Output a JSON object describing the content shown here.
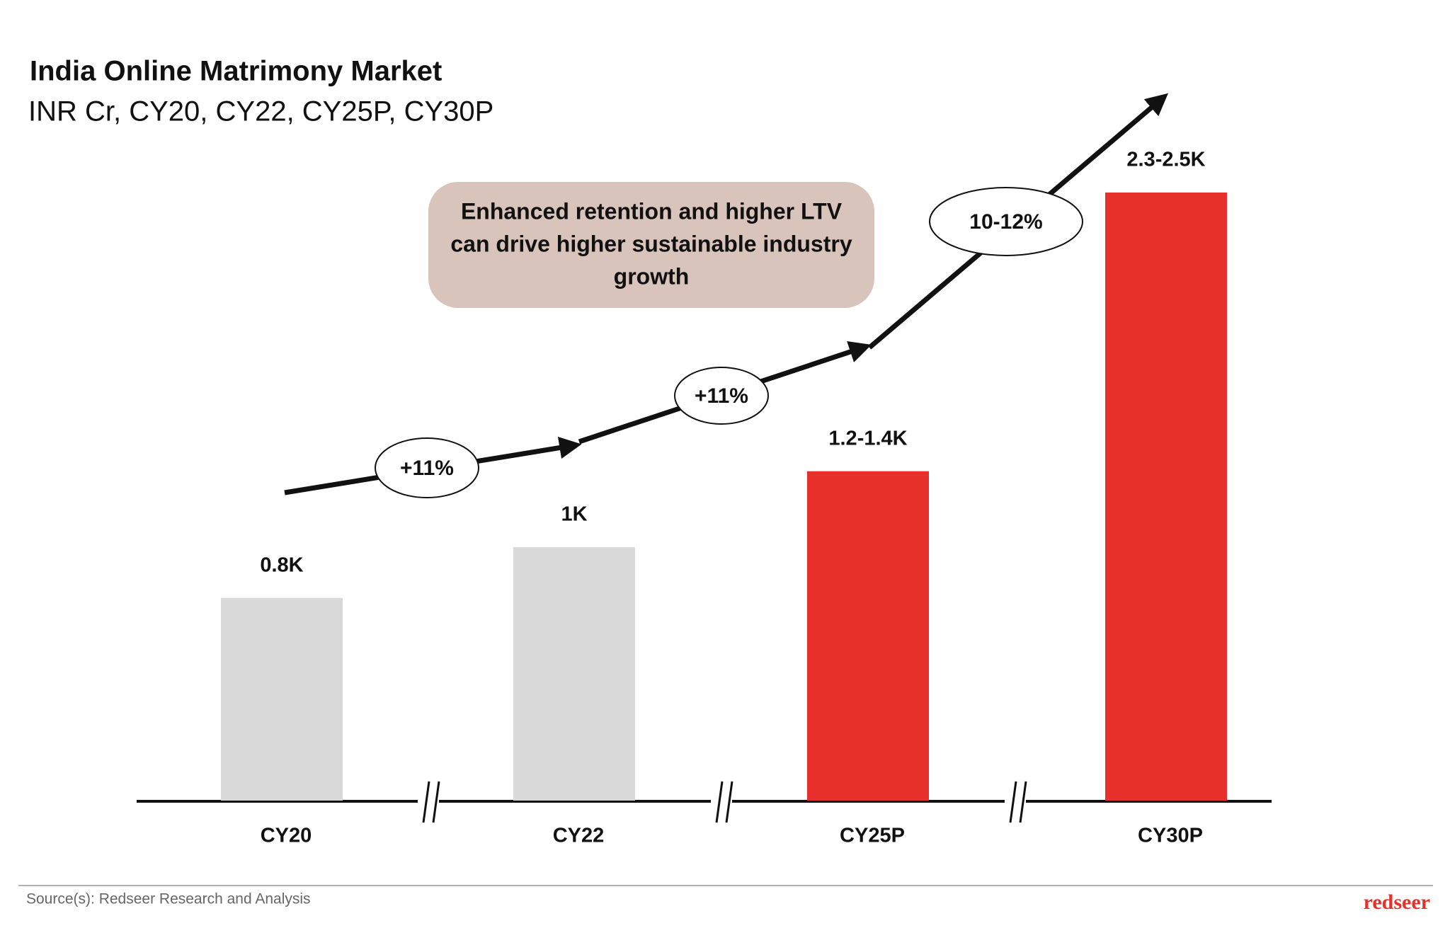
{
  "chart_data": {
    "type": "bar",
    "title": "India Online Matrimony Market",
    "subtitle": "INR Cr, CY20, CY22, CY25P, CY30P",
    "categories": [
      "CY20",
      "CY22",
      "CY25P",
      "CY30P"
    ],
    "values": [
      0.8,
      1,
      1.3,
      2.4
    ],
    "value_labels": [
      "0.8K",
      "1K",
      "1.2-1.4K",
      "2.3-2.5K"
    ],
    "colors": [
      "#d9d9d9",
      "#d9d9d9",
      "#e8302a",
      "#e8302a"
    ],
    "growth_labels": [
      "+11%",
      "+11%",
      "10-12%"
    ],
    "callout": [
      "Enhanced retention and higher LTV",
      "can drive higher sustainable industry",
      "growth"
    ]
  },
  "footer": {
    "source": "Source(s): Redseer Research and Analysis",
    "logo": "redseer"
  }
}
